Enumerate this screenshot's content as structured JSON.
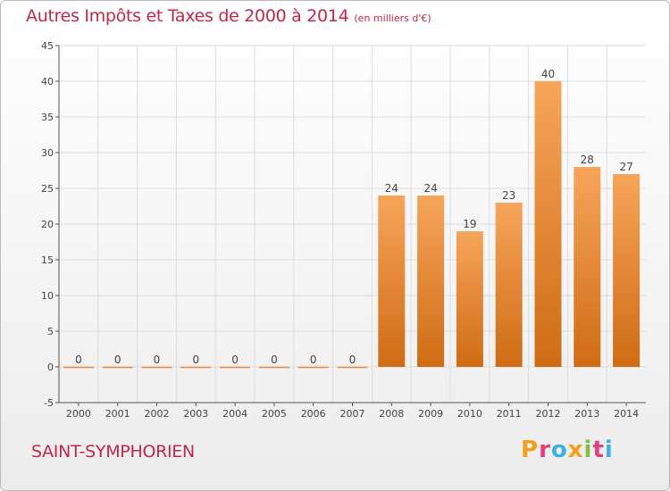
{
  "header": {
    "title": "Autres Impôts et Taxes de 2000 à 2014",
    "unit": "(en milliers d'€)"
  },
  "footer": {
    "town": "SAINT-SYMPHORIEN",
    "logo": "Proxiti",
    "logo_colors": [
      "#f0a020",
      "#e04080",
      "#40b0e0",
      "#f0a020",
      "#80c040",
      "#e04080",
      "#40b0e0"
    ]
  },
  "colors": {
    "title": "#c0284a",
    "bar_light": "#f6a55a",
    "bar_dark": "#cf6b14",
    "grid": "#dddddd"
  },
  "chart_data": {
    "type": "bar",
    "title": "Autres Impôts et Taxes de 2000 à 2014",
    "subtitle": "(en milliers d'€)",
    "xlabel": "",
    "ylabel": "",
    "categories": [
      "2000",
      "2001",
      "2002",
      "2003",
      "2004",
      "2005",
      "2006",
      "2007",
      "2008",
      "2009",
      "2010",
      "2011",
      "2012",
      "2013",
      "2014"
    ],
    "values": [
      0,
      0,
      0,
      0,
      0,
      0,
      0,
      0,
      24,
      24,
      19,
      23,
      40,
      28,
      27
    ],
    "data_labels": [
      "0",
      "0",
      "0",
      "0",
      "0",
      "0",
      "0",
      "0",
      "24",
      "24",
      "19",
      "23",
      "40",
      "28",
      "27"
    ],
    "ylim": [
      -5,
      45
    ],
    "yticks": [
      -5,
      0,
      5,
      10,
      15,
      20,
      25,
      30,
      35,
      40,
      45
    ],
    "ytick_labels": [
      "-5",
      "0",
      "5",
      "10",
      "15",
      "20",
      "25",
      "30",
      "35",
      "40",
      "45"
    ],
    "grid": true
  }
}
